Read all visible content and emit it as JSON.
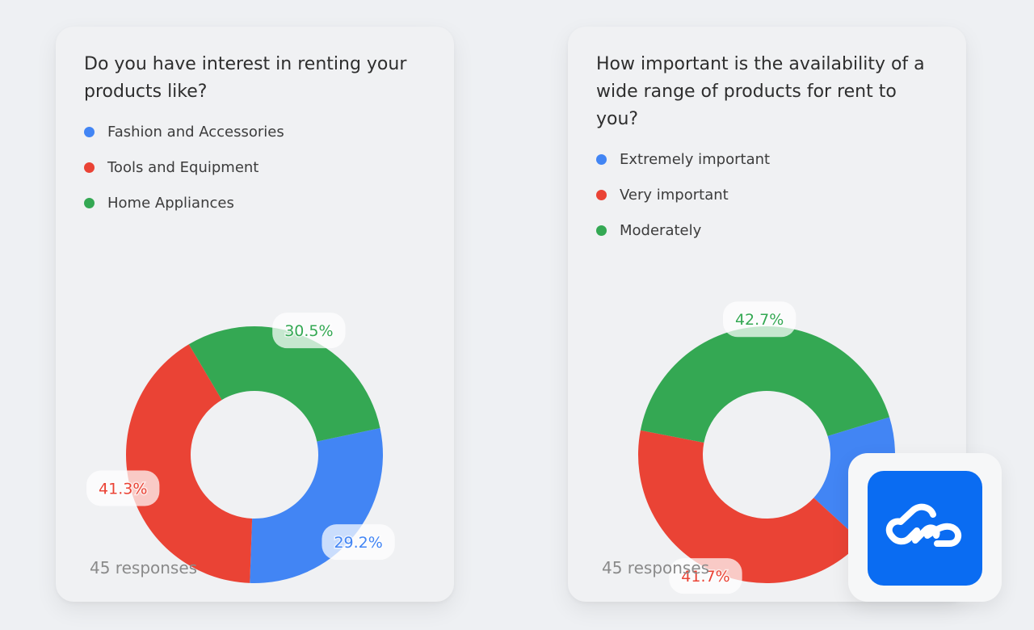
{
  "colors": {
    "blue": "#4285f4",
    "red": "#ea4335",
    "green": "#34a853"
  },
  "cards": [
    {
      "title": "Do you have interest in renting your products like?",
      "legend": [
        "Fashion and Accessories",
        "Tools and Equipment",
        "Home Appliances"
      ],
      "responses": "45 responses"
    },
    {
      "title": "How important is the availability of a wide range of  products for rent to you?",
      "legend": [
        "Extremely important",
        "Very important",
        "Moderately"
      ],
      "responses": "45 responses"
    }
  ],
  "chart_data": [
    {
      "type": "pie",
      "title": "Do you have interest in renting your products like?",
      "categories": [
        "Fashion and Accessories",
        "Tools and Equipment",
        "Home Appliances"
      ],
      "values": [
        29.2,
        41.3,
        30.5
      ],
      "value_labels": [
        "29.2%",
        "41.3%",
        "30.5%"
      ],
      "colors": [
        "#4285f4",
        "#ea4335",
        "#34a853"
      ],
      "donut": true,
      "legend": "top-left"
    },
    {
      "type": "pie",
      "title": "How important is the availability of a wide range of  products for rent to you?",
      "categories": [
        "Extremely important",
        "Very important",
        "Moderately"
      ],
      "values": [
        16.7,
        41.7,
        42.7
      ],
      "value_labels": [
        "16.7%",
        "41.7%",
        "42.7%"
      ],
      "colors": [
        "#4285f4",
        "#ea4335",
        "#34a853"
      ],
      "donut": true,
      "legend": "top-left"
    }
  ],
  "app_badge": {
    "icon": "link-cloud-icon"
  }
}
